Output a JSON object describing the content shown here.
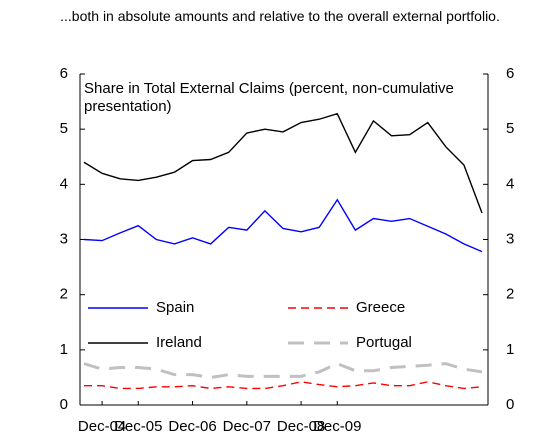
{
  "chart_data": {
    "type": "line",
    "title": "...both in absolute amounts and relative to the overall external portfolio.",
    "annotation": "Share in Total External Claims (percent, non-cumulative presentation)",
    "categories": [
      null,
      "Dec-04",
      null,
      "Dec-05",
      null,
      null,
      "Dec-06",
      null,
      null,
      "Dec-07",
      null,
      null,
      "Dec-08",
      null,
      "Dec-09",
      null,
      null,
      null,
      null,
      null,
      null,
      null,
      null
    ],
    "ylim": [
      0,
      6
    ],
    "yticks": [
      0,
      1,
      2,
      3,
      4,
      5,
      6
    ],
    "y2lim": [
      0,
      6
    ],
    "y2ticks": [
      0,
      1,
      2,
      3,
      4,
      5,
      6
    ],
    "grid": false,
    "series": [
      {
        "name": "Spain",
        "color": "#0000ff",
        "style": "solid",
        "values": [
          3.0,
          2.98,
          3.12,
          3.25,
          3.0,
          2.92,
          3.03,
          2.92,
          3.22,
          3.17,
          3.52,
          3.2,
          3.14,
          3.22,
          3.72,
          3.17,
          3.38,
          3.33,
          3.38,
          3.24,
          3.1,
          2.92,
          2.78
        ]
      },
      {
        "name": "Greece",
        "color": "#ff0000",
        "style": "dashed",
        "values": [
          0.35,
          0.35,
          0.3,
          0.3,
          0.33,
          0.33,
          0.35,
          0.3,
          0.33,
          0.3,
          0.3,
          0.35,
          0.42,
          0.37,
          0.33,
          0.35,
          0.4,
          0.35,
          0.35,
          0.42,
          0.35,
          0.3,
          0.33
        ]
      },
      {
        "name": "Ireland",
        "color": "#000000",
        "style": "solid",
        "values": [
          4.4,
          4.2,
          4.1,
          4.07,
          4.13,
          4.22,
          4.43,
          4.45,
          4.58,
          4.93,
          5.0,
          4.95,
          5.12,
          5.18,
          5.28,
          4.58,
          5.15,
          4.88,
          4.9,
          5.12,
          4.68,
          4.35,
          3.48
        ]
      },
      {
        "name": "Portugal",
        "color": "#c0c0c0",
        "style": "longdash",
        "values": [
          0.75,
          0.65,
          0.68,
          0.68,
          0.65,
          0.55,
          0.55,
          0.5,
          0.55,
          0.52,
          0.52,
          0.52,
          0.52,
          0.6,
          0.75,
          0.62,
          0.62,
          0.68,
          0.7,
          0.72,
          0.75,
          0.65,
          0.6
        ]
      }
    ]
  }
}
